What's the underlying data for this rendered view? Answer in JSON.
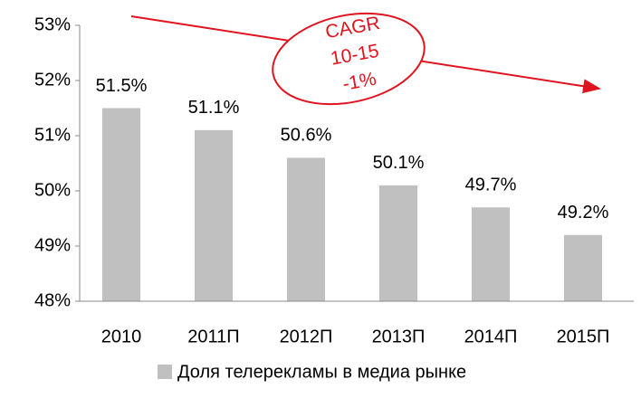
{
  "chart_data": {
    "type": "bar",
    "categories": [
      "2010",
      "2011П",
      "2012П",
      "2013П",
      "2014П",
      "2015П"
    ],
    "values": [
      51.5,
      51.1,
      50.6,
      50.1,
      49.7,
      49.2
    ],
    "value_labels": [
      "51.5%",
      "51.1%",
      "50.6%",
      "50.1%",
      "49.7%",
      "49.2%"
    ],
    "series_name": "Доля телерекламы в медиа рынке",
    "color": "#c0c0c0",
    "ylim": [
      48,
      53
    ],
    "yticks": [
      {
        "value": 48,
        "label": "48%"
      },
      {
        "value": 49,
        "label": "49%"
      },
      {
        "value": 50,
        "label": "50%"
      },
      {
        "value": 51,
        "label": "51%"
      },
      {
        "value": 52,
        "label": "52%"
      },
      {
        "value": 53,
        "label": "53%"
      }
    ],
    "grid": false,
    "annotation": [
      "CAGR",
      "10-15",
      "-1%"
    ]
  }
}
